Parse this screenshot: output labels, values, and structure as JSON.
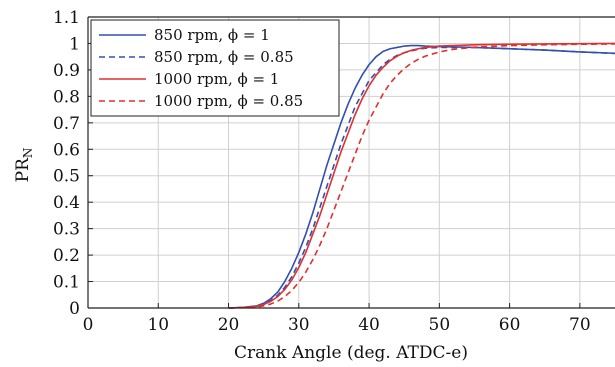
{
  "chart_data": {
    "type": "line",
    "xlabel": "Crank Angle (deg. ATDC-e)",
    "ylabel": "PR",
    "ylabel_sub": "N",
    "xlim": [
      0,
      75
    ],
    "ylim": [
      0,
      1.1
    ],
    "xticks": [
      "0",
      "10",
      "20",
      "30",
      "40",
      "50",
      "60",
      "70"
    ],
    "yticks": [
      "0",
      "0.1",
      "0.2",
      "0.3",
      "0.4",
      "0.5",
      "0.6",
      "0.7",
      "0.8",
      "0.9",
      "1",
      "1.1"
    ],
    "grid": true,
    "legend_position": "top-left",
    "series": [
      {
        "name": "850 rpm, ϕ = 1",
        "color": "#3050b0",
        "dash": "solid",
        "x": [
          20,
          22,
          24,
          25,
          26,
          27,
          28,
          29,
          30,
          31,
          32,
          33,
          34,
          35,
          36,
          37,
          38,
          39,
          40,
          41,
          42,
          43,
          44,
          45,
          46,
          47,
          48,
          50,
          55,
          60,
          65,
          70,
          75
        ],
        "y": [
          0,
          0.002,
          0.008,
          0.018,
          0.035,
          0.06,
          0.1,
          0.15,
          0.21,
          0.28,
          0.36,
          0.45,
          0.54,
          0.62,
          0.7,
          0.77,
          0.83,
          0.88,
          0.92,
          0.95,
          0.97,
          0.98,
          0.985,
          0.99,
          0.992,
          0.992,
          0.99,
          0.988,
          0.985,
          0.98,
          0.975,
          0.968,
          0.963
        ]
      },
      {
        "name": "850 rpm, ϕ = 0.85",
        "color": "#3050b0",
        "dash": "dashed",
        "x": [
          20,
          22,
          24,
          25,
          26,
          27,
          28,
          29,
          30,
          31,
          32,
          33,
          34,
          35,
          36,
          37,
          38,
          39,
          40,
          41,
          42,
          43,
          44,
          45,
          46,
          47,
          48,
          50,
          55,
          60,
          65,
          70,
          75
        ],
        "y": [
          0,
          0.002,
          0.007,
          0.015,
          0.028,
          0.048,
          0.078,
          0.118,
          0.17,
          0.23,
          0.3,
          0.38,
          0.46,
          0.54,
          0.62,
          0.69,
          0.76,
          0.81,
          0.86,
          0.89,
          0.92,
          0.94,
          0.955,
          0.965,
          0.972,
          0.978,
          0.982,
          0.985,
          0.985,
          0.98,
          0.975,
          0.968,
          0.962
        ]
      },
      {
        "name": "1000 rpm, ϕ = 1",
        "color": "#e03030",
        "dash": "solid",
        "x": [
          20,
          22,
          24,
          25,
          26,
          27,
          28,
          29,
          30,
          31,
          32,
          33,
          34,
          35,
          36,
          37,
          38,
          39,
          40,
          41,
          42,
          43,
          44,
          45,
          46,
          47,
          48,
          50,
          55,
          60,
          65,
          70,
          75
        ],
        "y": [
          0,
          0.002,
          0.006,
          0.013,
          0.025,
          0.043,
          0.07,
          0.106,
          0.153,
          0.21,
          0.28,
          0.35,
          0.43,
          0.51,
          0.59,
          0.66,
          0.73,
          0.79,
          0.84,
          0.88,
          0.91,
          0.935,
          0.952,
          0.965,
          0.974,
          0.98,
          0.985,
          0.99,
          0.995,
          0.997,
          0.998,
          0.999,
          1.0
        ]
      },
      {
        "name": "1000 rpm, ϕ = 0.85",
        "color": "#e03030",
        "dash": "dashed",
        "x": [
          20,
          22,
          24,
          25,
          26,
          27,
          28,
          29,
          30,
          31,
          32,
          33,
          34,
          35,
          36,
          37,
          38,
          39,
          40,
          41,
          42,
          43,
          44,
          45,
          46,
          47,
          48,
          50,
          52,
          55,
          60,
          65,
          70,
          75
        ],
        "y": [
          0,
          0.001,
          0.004,
          0.008,
          0.015,
          0.026,
          0.043,
          0.066,
          0.097,
          0.136,
          0.183,
          0.238,
          0.3,
          0.37,
          0.44,
          0.51,
          0.58,
          0.65,
          0.71,
          0.76,
          0.81,
          0.85,
          0.88,
          0.905,
          0.925,
          0.94,
          0.952,
          0.968,
          0.978,
          0.986,
          0.992,
          0.995,
          0.997,
          0.998
        ]
      }
    ]
  }
}
